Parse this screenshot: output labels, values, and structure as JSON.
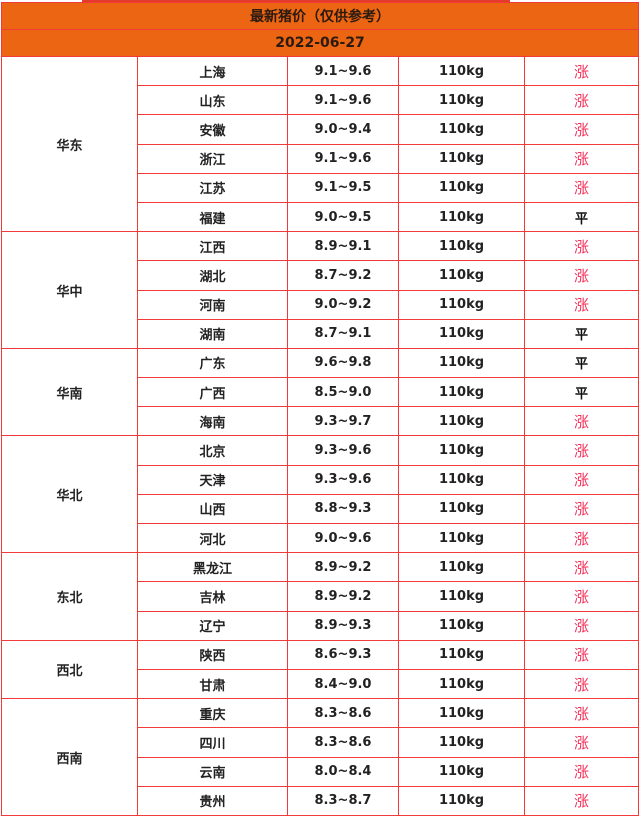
{
  "title": "最新猪价（仅供参考）",
  "date": "2022-06-27",
  "colors": {
    "header_bg": "#ec6513",
    "border": "#f23a3a",
    "rise": "#f5305a"
  },
  "regions": [
    {
      "name": "华东",
      "rows": [
        [
          "上海",
          "9.1~9.6",
          "110kg",
          "涨"
        ],
        [
          "山东",
          "9.1~9.6",
          "110kg",
          "涨"
        ],
        [
          "安徽",
          "9.0~9.4",
          "110kg",
          "涨"
        ],
        [
          "浙江",
          "9.1~9.6",
          "110kg",
          "涨"
        ],
        [
          "江苏",
          "9.1~9.5",
          "110kg",
          "涨"
        ],
        [
          "福建",
          "9.0~9.5",
          "110kg",
          "平"
        ]
      ]
    },
    {
      "name": "华中",
      "rows": [
        [
          "江西",
          "8.9~9.1",
          "110kg",
          "涨"
        ],
        [
          "湖北",
          "8.7~9.2",
          "110kg",
          "涨"
        ],
        [
          "河南",
          "9.0~9.2",
          "110kg",
          "涨"
        ],
        [
          "湖南",
          "8.7~9.1",
          "110kg",
          "平"
        ]
      ]
    },
    {
      "name": "华南",
      "rows": [
        [
          "广东",
          "9.6~9.8",
          "110kg",
          "平"
        ],
        [
          "广西",
          "8.5~9.0",
          "110kg",
          "平"
        ],
        [
          "海南",
          "9.3~9.7",
          "110kg",
          "涨"
        ]
      ]
    },
    {
      "name": "华北",
      "rows": [
        [
          "北京",
          "9.3~9.6",
          "110kg",
          "涨"
        ],
        [
          "天津",
          "9.3~9.6",
          "110kg",
          "涨"
        ],
        [
          "山西",
          "8.8~9.3",
          "110kg",
          "涨"
        ],
        [
          "河北",
          "9.0~9.6",
          "110kg",
          "涨"
        ]
      ]
    },
    {
      "name": "东北",
      "rows": [
        [
          "黑龙江",
          "8.9~9.2",
          "110kg",
          "涨"
        ],
        [
          "吉林",
          "8.9~9.2",
          "110kg",
          "涨"
        ],
        [
          "辽宁",
          "8.9~9.3",
          "110kg",
          "涨"
        ]
      ]
    },
    {
      "name": "西北",
      "rows": [
        [
          "陕西",
          "8.6~9.3",
          "110kg",
          "涨"
        ],
        [
          "甘肃",
          "8.4~9.0",
          "110kg",
          "涨"
        ]
      ]
    },
    {
      "name": "西南",
      "rows": [
        [
          "重庆",
          "8.3~8.6",
          "110kg",
          "涨"
        ],
        [
          "四川",
          "8.3~8.6",
          "110kg",
          "涨"
        ],
        [
          "云南",
          "8.0~8.4",
          "110kg",
          "涨"
        ],
        [
          "贵州",
          "8.3~8.7",
          "110kg",
          "涨"
        ]
      ]
    }
  ]
}
